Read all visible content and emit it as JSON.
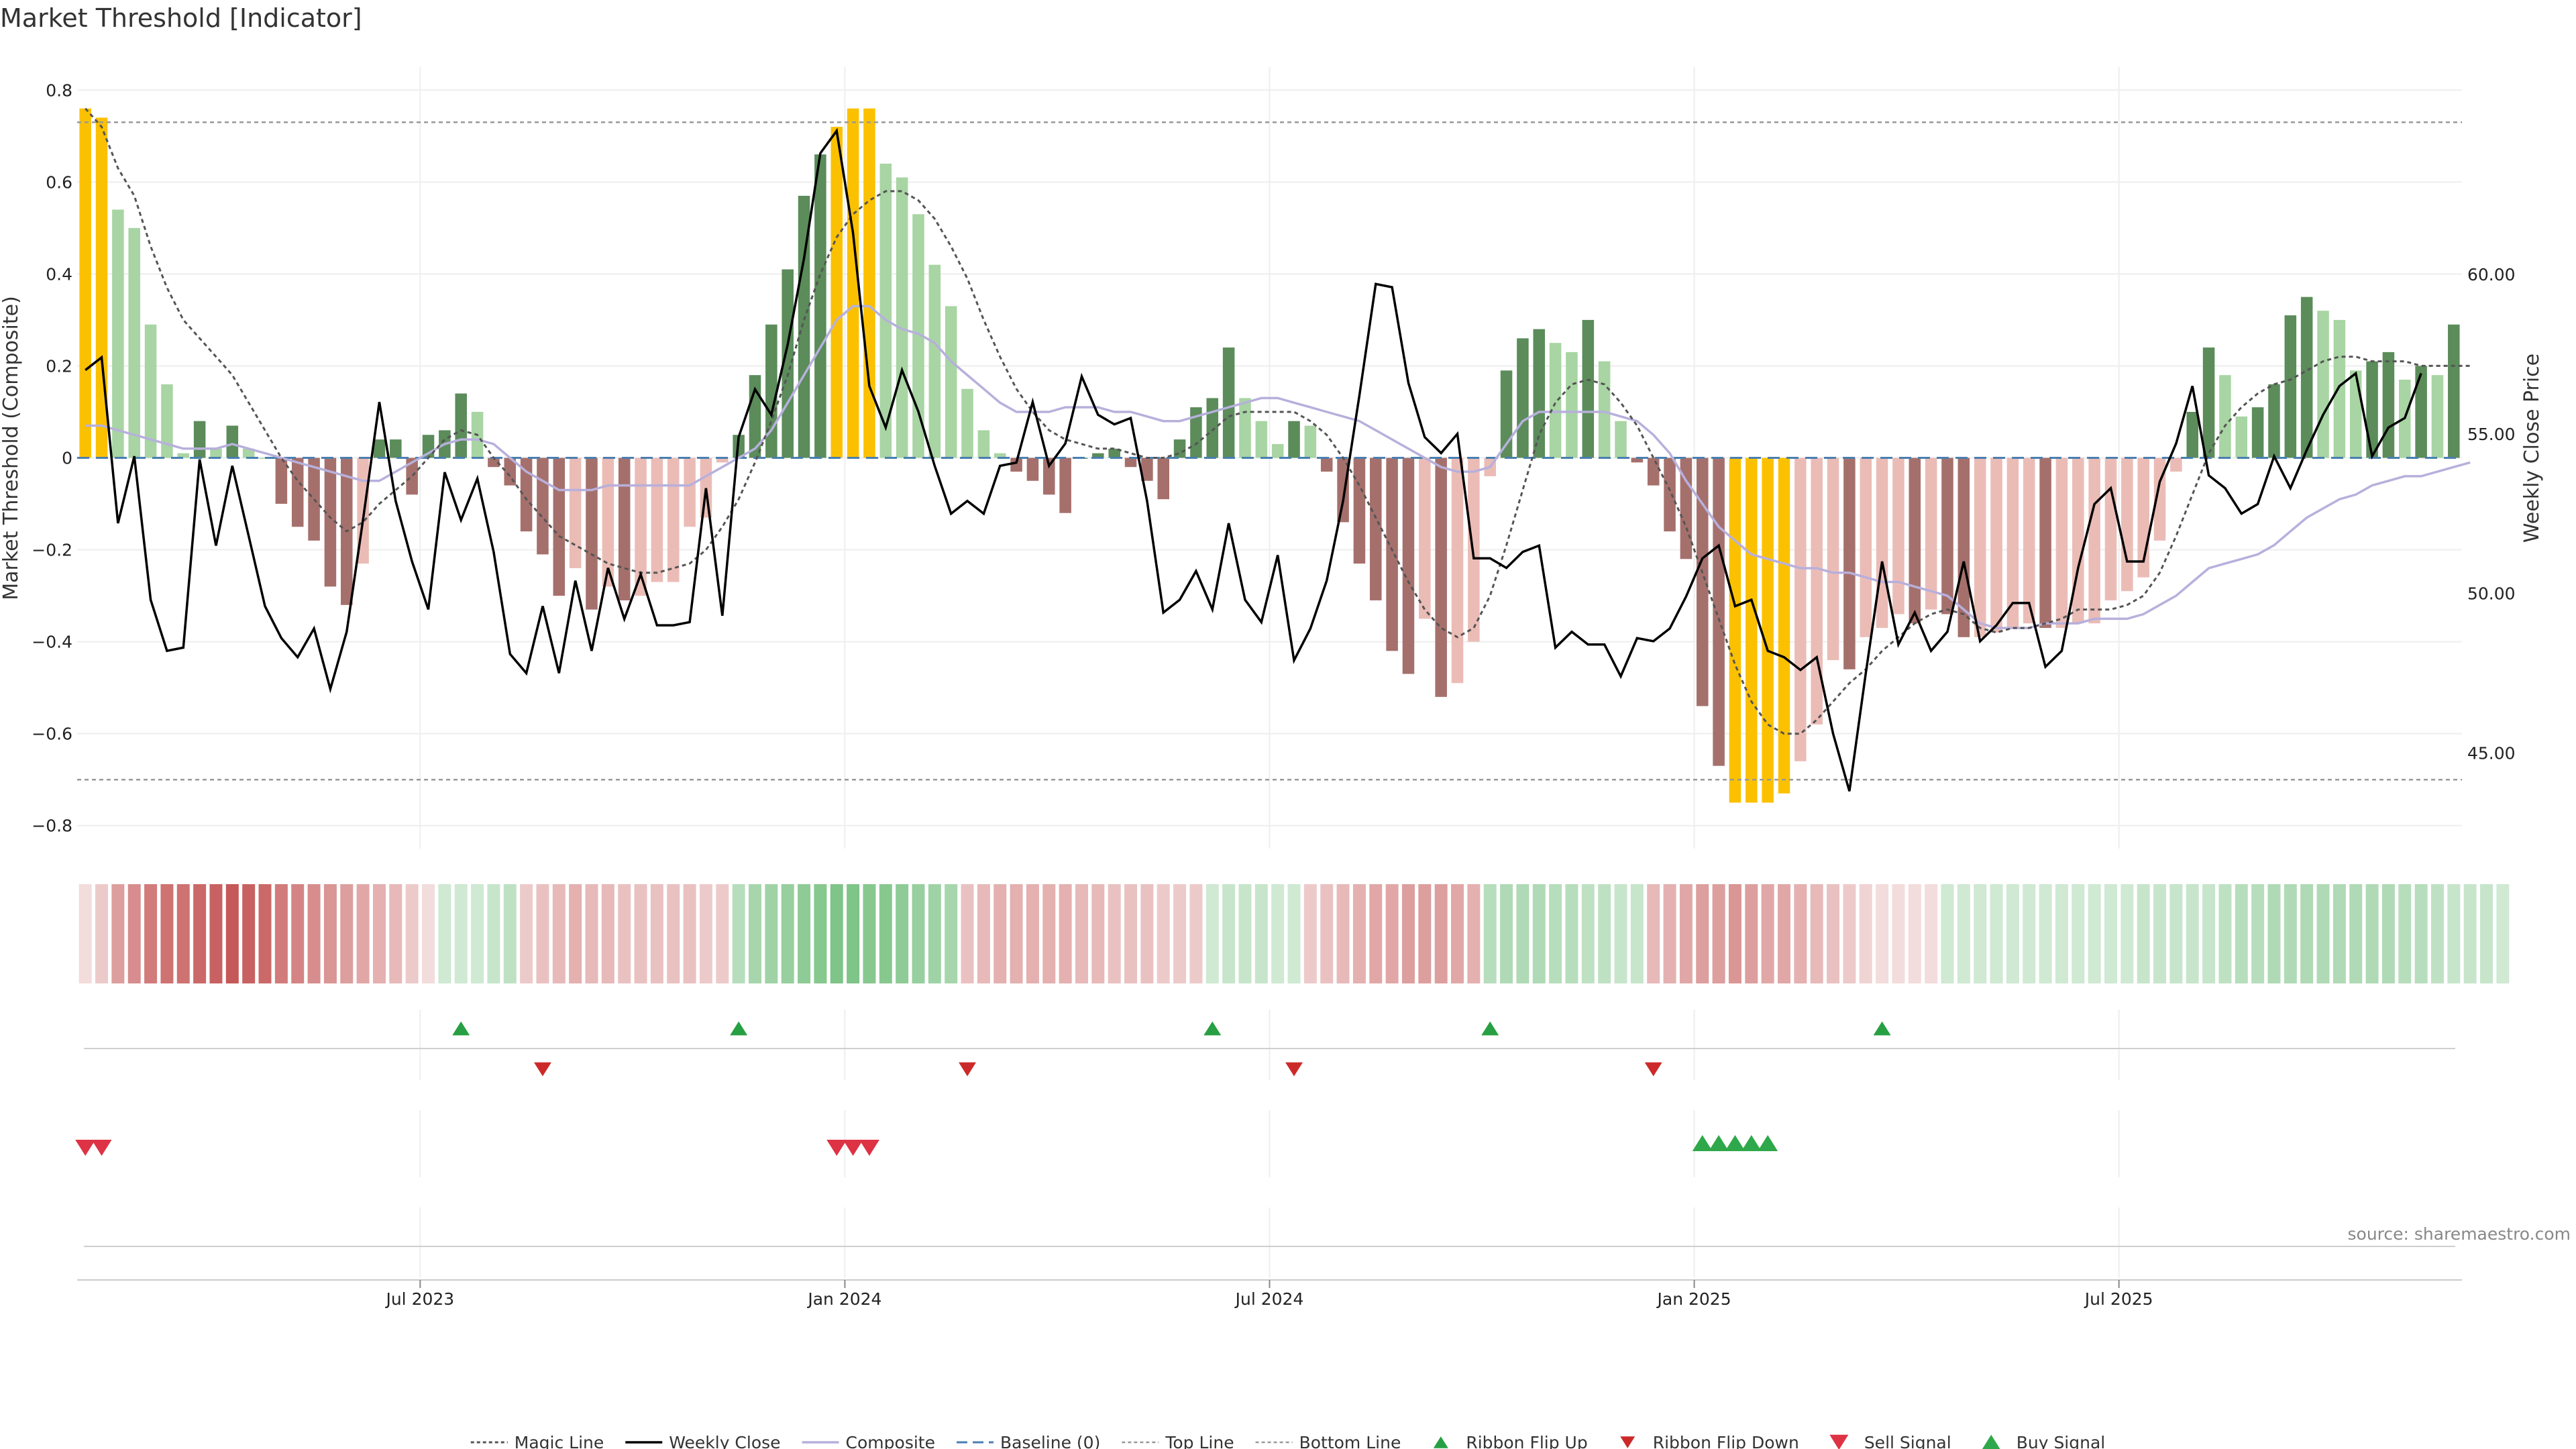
{
  "chart_data": {
    "type": "bar",
    "title": "Market Threshold [Indicator]",
    "ylabel": "Market Threshold (Composite)",
    "ylabel_right": "Weekly Close Price",
    "ylim": [
      -0.85,
      0.85
    ],
    "ylim_right": [
      42.0,
      66.5
    ],
    "source": "source: sharemaestro.com",
    "grid": true,
    "legend_position": "bottom",
    "y_ticks": [
      {
        "value": 0.8,
        "label": "0.8"
      },
      {
        "value": 0.6,
        "label": "0.6"
      },
      {
        "value": 0.4,
        "label": "0.4"
      },
      {
        "value": 0.2,
        "label": "0.2"
      },
      {
        "value": 0.0,
        "label": "0"
      },
      {
        "value": -0.2,
        "label": "−0.2"
      },
      {
        "value": -0.4,
        "label": "−0.4"
      },
      {
        "value": -0.6,
        "label": "−0.6"
      },
      {
        "value": -0.8,
        "label": "−0.8"
      }
    ],
    "y2_ticks": [
      {
        "value": 60,
        "label": "60.00"
      },
      {
        "value": 55,
        "label": "55.00"
      },
      {
        "value": 50,
        "label": "50.00"
      },
      {
        "value": 45,
        "label": "45.00"
      }
    ],
    "x_ticks": [
      {
        "label": "Jul 2023",
        "week": 21
      },
      {
        "label": "Jan 2024",
        "week": 47
      },
      {
        "label": "Jul 2024",
        "week": 73
      },
      {
        "label": "Jan 2025",
        "week": 99
      },
      {
        "label": "Jul 2025",
        "week": 125
      }
    ],
    "reference_lines": {
      "top": 0.73,
      "bottom": -0.7,
      "baseline": 0
    },
    "composite": [
      0.76,
      0.74,
      0.54,
      0.5,
      0.29,
      0.16,
      0.01,
      0.08,
      0.02,
      0.07,
      0.02,
      0.0,
      -0.1,
      -0.15,
      -0.18,
      -0.28,
      -0.32,
      -0.23,
      0.04,
      0.04,
      -0.08,
      0.05,
      0.06,
      0.14,
      0.1,
      -0.02,
      -0.06,
      -0.16,
      -0.21,
      -0.3,
      -0.24,
      -0.33,
      -0.28,
      -0.31,
      -0.3,
      -0.27,
      -0.27,
      -0.15,
      -0.13,
      -0.01,
      0.05,
      0.18,
      0.29,
      0.41,
      0.57,
      0.66,
      0.72,
      0.76,
      0.76,
      0.64,
      0.61,
      0.53,
      0.42,
      0.33,
      0.15,
      0.06,
      0.01,
      -0.03,
      -0.05,
      -0.08,
      -0.12,
      0.0,
      0.01,
      0.02,
      -0.02,
      -0.05,
      -0.09,
      0.04,
      0.11,
      0.13,
      0.24,
      0.13,
      0.08,
      0.03,
      0.08,
      0.07,
      -0.03,
      -0.14,
      -0.23,
      -0.31,
      -0.42,
      -0.47,
      -0.35,
      -0.52,
      -0.49,
      -0.4,
      -0.04,
      0.19,
      0.26,
      0.28,
      0.25,
      0.23,
      0.3,
      0.21,
      0.08,
      -0.01,
      -0.06,
      -0.16,
      -0.22,
      -0.54,
      -0.67,
      -0.75,
      -0.75,
      -0.75,
      -0.73,
      -0.66,
      -0.58,
      -0.44,
      -0.46,
      -0.39,
      -0.37,
      -0.34,
      -0.36,
      -0.33,
      -0.34,
      -0.39,
      -0.39,
      -0.38,
      -0.37,
      -0.36,
      -0.37,
      -0.37,
      -0.36,
      -0.36,
      -0.31,
      -0.29,
      -0.26,
      -0.18,
      -0.03,
      0.1,
      0.24,
      0.18,
      0.09,
      0.11,
      0.16,
      0.31,
      0.35,
      0.32,
      0.3,
      0.19,
      0.21,
      0.23,
      0.17,
      0.2,
      0.18,
      0.29
    ],
    "magic_line": [
      0.76,
      0.72,
      0.63,
      0.57,
      0.46,
      0.37,
      0.3,
      0.26,
      0.22,
      0.18,
      0.12,
      0.06,
      0.0,
      -0.05,
      -0.09,
      -0.13,
      -0.16,
      -0.14,
      -0.1,
      -0.07,
      -0.04,
      0.0,
      0.04,
      0.06,
      0.05,
      0.0,
      -0.04,
      -0.09,
      -0.13,
      -0.17,
      -0.19,
      -0.21,
      -0.23,
      -0.24,
      -0.25,
      -0.25,
      -0.24,
      -0.23,
      -0.2,
      -0.15,
      -0.09,
      -0.01,
      0.08,
      0.18,
      0.3,
      0.4,
      0.48,
      0.53,
      0.56,
      0.58,
      0.58,
      0.56,
      0.52,
      0.46,
      0.39,
      0.3,
      0.22,
      0.15,
      0.1,
      0.06,
      0.04,
      0.03,
      0.02,
      0.02,
      0.01,
      0.0,
      0.0,
      0.01,
      0.03,
      0.06,
      0.09,
      0.1,
      0.1,
      0.1,
      0.1,
      0.08,
      0.05,
      0.0,
      -0.06,
      -0.13,
      -0.2,
      -0.27,
      -0.33,
      -0.37,
      -0.39,
      -0.37,
      -0.3,
      -0.19,
      -0.07,
      0.05,
      0.12,
      0.16,
      0.17,
      0.16,
      0.12,
      0.07,
      0.0,
      -0.07,
      -0.15,
      -0.25,
      -0.35,
      -0.45,
      -0.53,
      -0.58,
      -0.6,
      -0.6,
      -0.57,
      -0.53,
      -0.49,
      -0.46,
      -0.42,
      -0.39,
      -0.36,
      -0.34,
      -0.33,
      -0.34,
      -0.37,
      -0.38,
      -0.37,
      -0.37,
      -0.36,
      -0.35,
      -0.33,
      -0.33,
      -0.33,
      -0.32,
      -0.3,
      -0.25,
      -0.17,
      -0.08,
      0.01,
      0.07,
      0.11,
      0.14,
      0.16,
      0.17,
      0.19,
      0.21,
      0.22,
      0.22,
      0.21,
      0.21,
      0.21,
      0.2,
      0.2,
      0.2,
      0.2
    ],
    "composite_smooth": [
      0.07,
      0.07,
      0.06,
      0.05,
      0.04,
      0.03,
      0.02,
      0.02,
      0.02,
      0.03,
      0.02,
      0.01,
      0.0,
      -0.01,
      -0.02,
      -0.03,
      -0.04,
      -0.05,
      -0.05,
      -0.03,
      -0.01,
      0.01,
      0.03,
      0.04,
      0.04,
      0.03,
      0.0,
      -0.03,
      -0.05,
      -0.07,
      -0.07,
      -0.07,
      -0.06,
      -0.06,
      -0.06,
      -0.06,
      -0.06,
      -0.06,
      -0.04,
      -0.02,
      0.0,
      0.02,
      0.06,
      0.12,
      0.18,
      0.24,
      0.3,
      0.33,
      0.33,
      0.3,
      0.28,
      0.27,
      0.25,
      0.21,
      0.18,
      0.15,
      0.12,
      0.1,
      0.1,
      0.1,
      0.11,
      0.11,
      0.11,
      0.1,
      0.1,
      0.09,
      0.08,
      0.08,
      0.09,
      0.1,
      0.11,
      0.12,
      0.13,
      0.13,
      0.12,
      0.11,
      0.1,
      0.09,
      0.08,
      0.06,
      0.04,
      0.02,
      0.0,
      -0.02,
      -0.03,
      -0.03,
      -0.02,
      0.03,
      0.08,
      0.1,
      0.1,
      0.1,
      0.1,
      0.1,
      0.09,
      0.08,
      0.05,
      0.01,
      -0.05,
      -0.1,
      -0.15,
      -0.18,
      -0.21,
      -0.22,
      -0.23,
      -0.24,
      -0.24,
      -0.25,
      -0.25,
      -0.26,
      -0.27,
      -0.27,
      -0.28,
      -0.29,
      -0.3,
      -0.33,
      -0.36,
      -0.37,
      -0.37,
      -0.37,
      -0.36,
      -0.36,
      -0.36,
      -0.35,
      -0.35,
      -0.35,
      -0.34,
      -0.32,
      -0.3,
      -0.27,
      -0.24,
      -0.23,
      -0.22,
      -0.21,
      -0.19,
      -0.16,
      -0.13,
      -0.11,
      -0.09,
      -0.08,
      -0.06,
      -0.05,
      -0.04,
      -0.04,
      -0.03,
      -0.02,
      -0.01
    ],
    "weekly_close": [
      57.0,
      57.4,
      52.2,
      54.3,
      49.8,
      48.2,
      48.3,
      54.2,
      51.5,
      54.0,
      51.8,
      49.6,
      48.6,
      48.0,
      48.9,
      47.0,
      48.8,
      52.3,
      56.0,
      52.9,
      51.0,
      49.5,
      53.8,
      52.3,
      53.6,
      51.3,
      48.1,
      47.5,
      49.6,
      47.5,
      50.4,
      48.2,
      50.8,
      49.2,
      50.6,
      49.0,
      49.0,
      49.1,
      53.3,
      49.3,
      54.9,
      56.4,
      55.6,
      57.8,
      60.5,
      63.8,
      64.5,
      61.3,
      56.5,
      55.2,
      57.0,
      55.7,
      54.0,
      52.5,
      52.9,
      52.5,
      54.0,
      54.1,
      56.0,
      54.0,
      54.7,
      56.8,
      55.6,
      55.3,
      55.5,
      52.9,
      49.4,
      49.8,
      50.7,
      49.5,
      52.2,
      49.8,
      49.1,
      51.2,
      47.9,
      48.9,
      50.4,
      52.9,
      56.2,
      59.7,
      59.6,
      56.6,
      54.9,
      54.4,
      55.0,
      51.1,
      51.1,
      50.8,
      51.3,
      51.5,
      48.3,
      48.8,
      48.4,
      48.4,
      47.4,
      48.6,
      48.5,
      48.9,
      49.9,
      51.1,
      51.5,
      49.6,
      49.8,
      48.2,
      48.0,
      47.6,
      48.0,
      45.6,
      43.8,
      47.5,
      51.0,
      48.4,
      49.4,
      48.2,
      48.8,
      51.0,
      48.5,
      49.0,
      49.7,
      49.7,
      47.7,
      48.2,
      50.8,
      52.8,
      53.3,
      51.0,
      51.0,
      53.5,
      54.7,
      56.5,
      53.7,
      53.3,
      52.5,
      52.8,
      54.3,
      53.3,
      54.5,
      55.6,
      56.5,
      56.9,
      54.3,
      55.2,
      55.5,
      56.9
    ],
    "ribbon": [
      -0.2,
      -0.3,
      -0.55,
      -0.65,
      -0.75,
      -0.8,
      -0.8,
      -0.85,
      -0.9,
      -0.95,
      -0.9,
      -0.85,
      -0.75,
      -0.7,
      -0.65,
      -0.6,
      -0.55,
      -0.5,
      -0.45,
      -0.4,
      -0.3,
      -0.2,
      0.3,
      0.3,
      0.3,
      0.35,
      0.4,
      -0.3,
      -0.35,
      -0.4,
      -0.45,
      -0.4,
      -0.4,
      -0.35,
      -0.35,
      -0.35,
      -0.35,
      -0.35,
      -0.3,
      -0.3,
      0.45,
      0.55,
      0.6,
      0.65,
      0.7,
      0.75,
      0.8,
      0.8,
      0.75,
      0.75,
      0.7,
      0.65,
      0.6,
      0.55,
      -0.35,
      -0.4,
      -0.45,
      -0.45,
      -0.45,
      -0.45,
      -0.45,
      -0.4,
      -0.4,
      -0.35,
      -0.35,
      -0.35,
      -0.3,
      -0.3,
      -0.3,
      0.3,
      0.35,
      0.35,
      0.35,
      0.3,
      0.3,
      -0.3,
      -0.35,
      -0.4,
      -0.45,
      -0.5,
      -0.5,
      -0.55,
      -0.55,
      -0.55,
      -0.5,
      -0.45,
      0.45,
      0.5,
      0.5,
      0.5,
      0.45,
      0.45,
      0.4,
      0.4,
      0.35,
      0.35,
      -0.4,
      -0.45,
      -0.5,
      -0.55,
      -0.55,
      -0.6,
      -0.55,
      -0.5,
      -0.5,
      -0.45,
      -0.4,
      -0.35,
      -0.3,
      -0.25,
      -0.2,
      -0.2,
      -0.2,
      -0.2,
      0.3,
      0.3,
      0.3,
      0.3,
      0.3,
      0.3,
      0.3,
      0.3,
      0.3,
      0.3,
      0.3,
      0.3,
      0.35,
      0.35,
      0.35,
      0.35,
      0.35,
      0.4,
      0.45,
      0.45,
      0.5,
      0.5,
      0.5,
      0.5,
      0.5,
      0.5,
      0.5,
      0.5,
      0.45,
      0.45,
      0.4,
      0.35,
      0.35,
      0.35,
      0.3
    ],
    "ribbon_flip_up": [
      23,
      40,
      69,
      86,
      110
    ],
    "ribbon_flip_down": [
      28,
      54,
      74,
      96
    ],
    "sell_signal": [
      0,
      1,
      46,
      47,
      48
    ],
    "buy_signal": [
      99,
      100,
      101,
      102,
      103
    ],
    "legend": [
      {
        "key": "magic",
        "label": "Magic Line"
      },
      {
        "key": "close",
        "label": "Weekly Close"
      },
      {
        "key": "composite",
        "label": "Composite"
      },
      {
        "key": "baseline",
        "label": "Baseline (0)"
      },
      {
        "key": "top",
        "label": "Top Line"
      },
      {
        "key": "bottom",
        "label": "Bottom Line"
      },
      {
        "key": "flipup",
        "label": "Ribbon Flip Up"
      },
      {
        "key": "flipdown",
        "label": "Ribbon Flip Down"
      },
      {
        "key": "sell",
        "label": "Sell Signal"
      },
      {
        "key": "buy",
        "label": "Buy Signal"
      }
    ],
    "colors": {
      "bar_strong_pos": "#5b8c5a",
      "bar_weak_pos": "#a8d5a3",
      "bar_strong_neg": "#a5706c",
      "bar_weak_neg": "#ebbcb6",
      "bar_extreme": "#fbc100",
      "magic_line": "#555555",
      "weekly_close": "#000000",
      "composite_line": "#b7b0dc",
      "baseline": "#4a7fb0",
      "ref_line": "#999999",
      "ribbon_pos": "#5fb56a",
      "ribbon_neg": "#c24f4f",
      "flip_up": "#26a042",
      "flip_down": "#cc2a2a",
      "sell": "#dd3344",
      "buy": "#2ea84a",
      "grid": "#eeeeee"
    }
  }
}
